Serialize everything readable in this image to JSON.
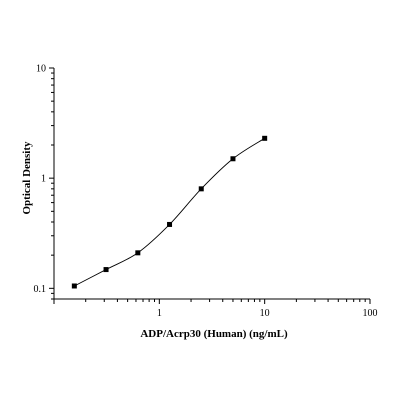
{
  "chart_data": {
    "type": "scatter",
    "title": "",
    "xlabel": "ADP/Acrp30 (Human) (ng/mL)",
    "ylabel": "Optical Density",
    "xscale": "log",
    "yscale": "log",
    "xlim": [
      0.1,
      100
    ],
    "ylim": [
      0.08,
      10
    ],
    "xticks": [
      {
        "value": 1,
        "label": "1"
      },
      {
        "value": 10,
        "label": "10"
      },
      {
        "value": 100,
        "label": "100"
      }
    ],
    "yticks": [
      {
        "value": 0.1,
        "label": "0.1"
      },
      {
        "value": 1,
        "label": "1"
      },
      {
        "value": 10,
        "label": "10"
      }
    ],
    "grid": false,
    "legend": "none",
    "colors": {
      "points": "#000000",
      "curve": "#000000",
      "axes": "#000000"
    },
    "series": [
      {
        "x": [
          0.156,
          0.312,
          0.625,
          1.25,
          2.5,
          5,
          10
        ],
        "y": [
          0.105,
          0.148,
          0.21,
          0.38,
          0.8,
          1.5,
          2.3
        ],
        "marker": "square",
        "fit": "4PL"
      }
    ]
  }
}
